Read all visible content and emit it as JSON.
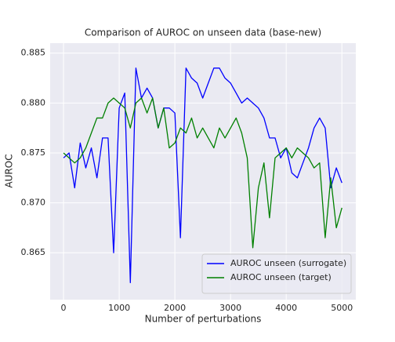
{
  "chart_data": {
    "type": "line",
    "title": "Comparison of AUROC on unseen data (base-new)",
    "xlabel": "Number of perturbations",
    "ylabel": "AUROC",
    "x": [
      0,
      100,
      200,
      300,
      400,
      500,
      600,
      700,
      800,
      900,
      1000,
      1100,
      1200,
      1300,
      1400,
      1500,
      1600,
      1700,
      1800,
      1900,
      2000,
      2100,
      2200,
      2300,
      2400,
      2500,
      2600,
      2700,
      2800,
      2900,
      3000,
      3100,
      3200,
      3300,
      3400,
      3500,
      3600,
      3700,
      3800,
      3900,
      4000,
      4100,
      4200,
      4300,
      4400,
      4500,
      4600,
      4700,
      4800,
      4900,
      5000
    ],
    "series": [
      {
        "name": "AUROC unseen (surrogate)",
        "color": "#0000ff",
        "values": [
          0.8745,
          0.875,
          0.8715,
          0.876,
          0.8735,
          0.8755,
          0.8725,
          0.8765,
          0.8765,
          0.865,
          0.8795,
          0.881,
          0.862,
          0.8835,
          0.8805,
          0.8815,
          0.8805,
          0.8775,
          0.8795,
          0.8795,
          0.879,
          0.8665,
          0.8835,
          0.8825,
          0.882,
          0.8805,
          0.882,
          0.8835,
          0.8835,
          0.8825,
          0.882,
          0.881,
          0.88,
          0.8805,
          0.88,
          0.8795,
          0.8785,
          0.8765,
          0.8765,
          0.8745,
          0.8755,
          0.873,
          0.8725,
          0.874,
          0.8755,
          0.8775,
          0.8785,
          0.8775,
          0.8715,
          0.8735,
          0.872
        ]
      },
      {
        "name": "AUROC unseen (target)",
        "color": "#008000",
        "values": [
          0.875,
          0.8745,
          0.874,
          0.8745,
          0.8755,
          0.877,
          0.8785,
          0.8785,
          0.88,
          0.8805,
          0.88,
          0.8795,
          0.8775,
          0.88,
          0.8805,
          0.879,
          0.8805,
          0.8775,
          0.8795,
          0.8755,
          0.876,
          0.8775,
          0.877,
          0.8785,
          0.8765,
          0.8775,
          0.8765,
          0.8755,
          0.8775,
          0.8765,
          0.8775,
          0.8785,
          0.877,
          0.8745,
          0.8655,
          0.8715,
          0.874,
          0.8685,
          0.8745,
          0.875,
          0.8755,
          0.8745,
          0.8755,
          0.875,
          0.8745,
          0.8735,
          0.874,
          0.8665,
          0.8725,
          0.8675,
          0.8695
        ]
      }
    ],
    "xlim": [
      -240,
      5250
    ],
    "ylim": [
      0.8603,
      0.886
    ],
    "xticks": [
      0,
      1000,
      2000,
      3000,
      4000,
      5000
    ],
    "yticks": [
      {
        "value": 0.865,
        "label": "0.865"
      },
      {
        "value": 0.87,
        "label": "0.870"
      },
      {
        "value": 0.875,
        "label": "0.875"
      },
      {
        "value": 0.88,
        "label": "0.880"
      },
      {
        "value": 0.885,
        "label": "0.885"
      }
    ],
    "grid": true,
    "legend": "lower right"
  }
}
